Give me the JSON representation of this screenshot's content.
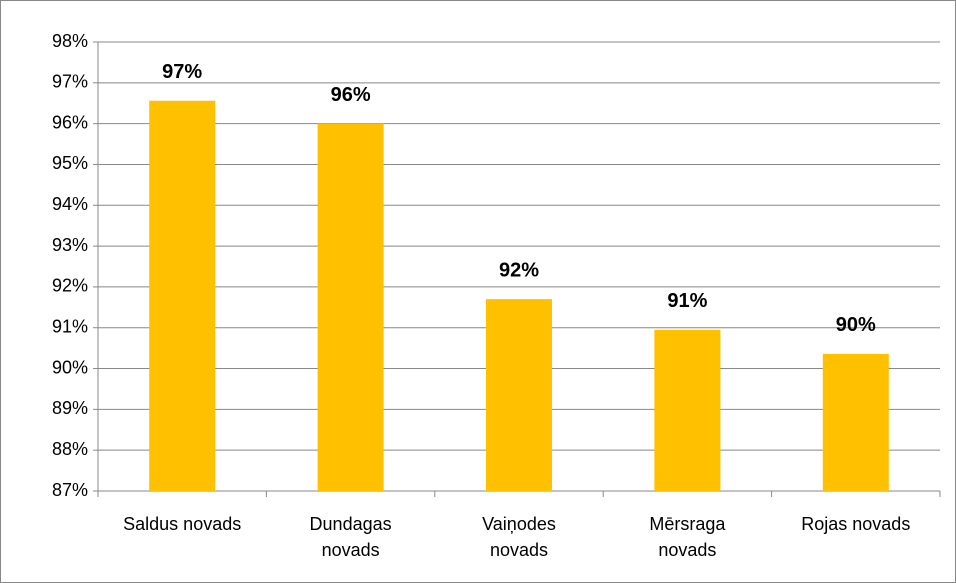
{
  "chart_data": {
    "type": "bar",
    "categories": [
      "Saldus novads",
      "Dundagas novads",
      "Vaiņodes novads",
      "Mērsraga novads",
      "Rojas novads"
    ],
    "values": [
      96.56,
      96.0,
      91.7,
      90.95,
      90.36
    ],
    "value_labels": [
      "97%",
      "96%",
      "92%",
      "91%",
      "90%"
    ],
    "color": "#ffc000",
    "ylim": [
      87,
      98
    ],
    "yticks": [
      {
        "value": 87,
        "label": "87%"
      },
      {
        "value": 88,
        "label": "88%"
      },
      {
        "value": 89,
        "label": "89%"
      },
      {
        "value": 90,
        "label": "90%"
      },
      {
        "value": 91,
        "label": "91%"
      },
      {
        "value": 92,
        "label": "92%"
      },
      {
        "value": 93,
        "label": "93%"
      },
      {
        "value": 94,
        "label": "94%"
      },
      {
        "value": 95,
        "label": "95%"
      },
      {
        "value": 96,
        "label": "96%"
      },
      {
        "value": 97,
        "label": "97%"
      },
      {
        "value": 98,
        "label": "98%"
      }
    ],
    "grid": true
  }
}
